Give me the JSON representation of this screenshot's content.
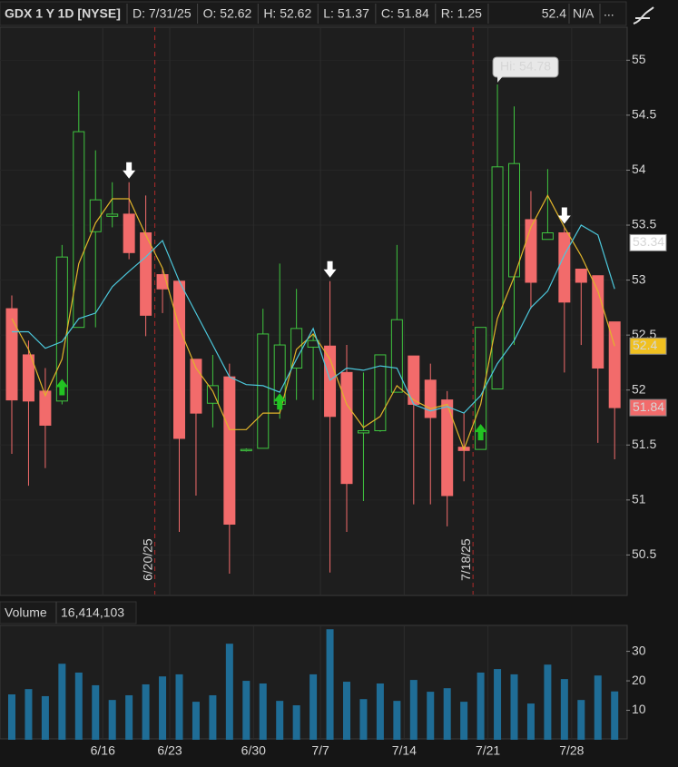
{
  "chart_data": {
    "type": "candlestick",
    "title": "GDX 1 Y 1D [NYSE]",
    "header_items": [
      "D: 7/31/25",
      "O: 52.62",
      "H: 52.62",
      "L: 51.37",
      "C: 51.84",
      "R: 1.25"
    ],
    "study_value": 52.4,
    "study_status": "N/A",
    "more": "...",
    "categories": [
      null,
      null,
      null,
      null,
      null,
      "6/16",
      null,
      null,
      null,
      "6/23",
      null,
      null,
      null,
      null,
      "6/30",
      null,
      null,
      null,
      "7/7",
      null,
      null,
      null,
      null,
      "7/14",
      null,
      null,
      null,
      null,
      "7/21",
      null,
      null,
      null,
      null,
      "7/28",
      null,
      null,
      null
    ],
    "open": [
      52.74,
      52.32,
      51.99,
      51.9,
      52.57,
      53.44,
      53.58,
      53.6,
      53.43,
      53.05,
      52.99,
      52.28,
      51.88,
      52.12,
      51.45,
      51.47,
      51.87,
      52.2,
      52.39,
      52.4,
      52.16,
      51.61,
      51.63,
      51.98,
      52.31,
      52.09,
      51.91,
      51.48,
      51.46,
      52.01,
      53.03,
      53.55,
      53.37,
      53.43,
      53.1,
      53.04,
      52.62
    ],
    "high": [
      52.86,
      52.45,
      52.2,
      53.32,
      54.72,
      54.18,
      53.89,
      53.89,
      53.77,
      53.1,
      53.0,
      52.28,
      52.32,
      52.24,
      51.47,
      52.74,
      53.15,
      52.92,
      52.51,
      52.99,
      52.41,
      52.16,
      52.32,
      53.32,
      52.31,
      52.24,
      51.99,
      51.79,
      52.57,
      54.78,
      54.58,
      53.81,
      54.01,
      53.48,
      53.1,
      53.04,
      52.62
    ],
    "low": [
      51.42,
      51.13,
      51.29,
      51.87,
      52.57,
      52.57,
      53.48,
      53.19,
      52.49,
      52.7,
      50.71,
      51.04,
      51.66,
      50.33,
      51.44,
      51.47,
      51.74,
      51.91,
      51.91,
      50.34,
      50.71,
      50.99,
      51.62,
      51.98,
      50.96,
      50.96,
      50.76,
      51.17,
      51.46,
      52.01,
      52.41,
      52.74,
      53.37,
      52.16,
      52.41,
      51.52,
      51.37
    ],
    "close": [
      51.91,
      51.9,
      51.68,
      53.21,
      54.35,
      53.73,
      53.6,
      53.25,
      52.68,
      52.92,
      51.56,
      51.79,
      52.04,
      50.78,
      51.46,
      52.51,
      52.41,
      52.56,
      52.45,
      51.76,
      51.15,
      51.63,
      52.32,
      52.64,
      51.87,
      51.75,
      51.04,
      51.45,
      52.57,
      54.03,
      54.06,
      52.98,
      53.43,
      52.8,
      52.98,
      52.2,
      51.84
    ],
    "up_color": "#3fc43f",
    "down_color": "#f26b6b",
    "overlays": [
      {
        "color": "#e0b42a",
        "values": [
          52.65,
          52.37,
          51.95,
          52.28,
          53.15,
          53.52,
          53.74,
          53.74,
          53.41,
          53.11,
          52.57,
          52.2,
          51.99,
          51.64,
          51.64,
          51.79,
          51.79,
          52.37,
          52.51,
          52.28,
          51.87,
          51.66,
          51.76,
          52.04,
          51.91,
          51.83,
          51.87,
          51.46,
          51.87,
          52.65,
          53.03,
          53.48,
          53.77,
          53.48,
          53.22,
          52.9,
          52.4
        ]
      },
      {
        "color": "#4cc8dc",
        "values": [
          52.53,
          52.53,
          52.38,
          52.44,
          52.65,
          52.7,
          52.94,
          53.08,
          53.21,
          53.36,
          52.99,
          52.7,
          52.41,
          52.12,
          52.05,
          52.04,
          51.98,
          52.28,
          52.56,
          52.09,
          52.2,
          52.18,
          52.22,
          52.2,
          51.87,
          51.81,
          51.85,
          51.79,
          51.95,
          52.24,
          52.45,
          52.75,
          52.9,
          53.23,
          53.5,
          53.41,
          52.92
        ]
      }
    ],
    "axis_markers": [
      {
        "value": 53.34,
        "color": "#ffffff"
      },
      {
        "value": 52.4,
        "color": "#f0c020"
      },
      {
        "value": 51.84,
        "color": "#f26b6b"
      }
    ],
    "signals": [
      {
        "index": 3,
        "dir": "up"
      },
      {
        "index": 16,
        "dir": "up"
      },
      {
        "index": 28,
        "dir": "up"
      },
      {
        "index": 7,
        "dir": "down"
      },
      {
        "index": 19,
        "dir": "down"
      },
      {
        "index": 33,
        "dir": "down"
      }
    ],
    "events": [
      {
        "index": 8,
        "label": "6/20/25"
      },
      {
        "index": 27,
        "label": "7/18/25"
      }
    ],
    "hi_label": {
      "index": 29,
      "text": "Hi: 54.78"
    },
    "ylim": [
      50.14,
      55.3
    ],
    "yticks": [
      50.5,
      51,
      51.5,
      52,
      52.5,
      53,
      53.5,
      54,
      54.5,
      55
    ],
    "grid": true,
    "volume": {
      "title": "Volume",
      "last": "16,414,103",
      "color": "#1f6d96",
      "values": [
        15.4,
        17.2,
        14.8,
        25.8,
        22.8,
        18.5,
        13.5,
        15.1,
        18.8,
        21.5,
        22.2,
        12.9,
        15.1,
        32.6,
        20.0,
        19.1,
        13.2,
        11.7,
        22.2,
        37.5,
        19.7,
        13.8,
        19.1,
        13.2,
        20.3,
        16.3,
        17.5,
        12.9,
        22.8,
        24.0,
        22.2,
        12.3,
        25.5,
        20.6,
        13.5,
        21.8,
        16.41
      ],
      "ylim": [
        0,
        38.5
      ],
      "yticks": [
        10,
        20,
        30
      ]
    }
  }
}
